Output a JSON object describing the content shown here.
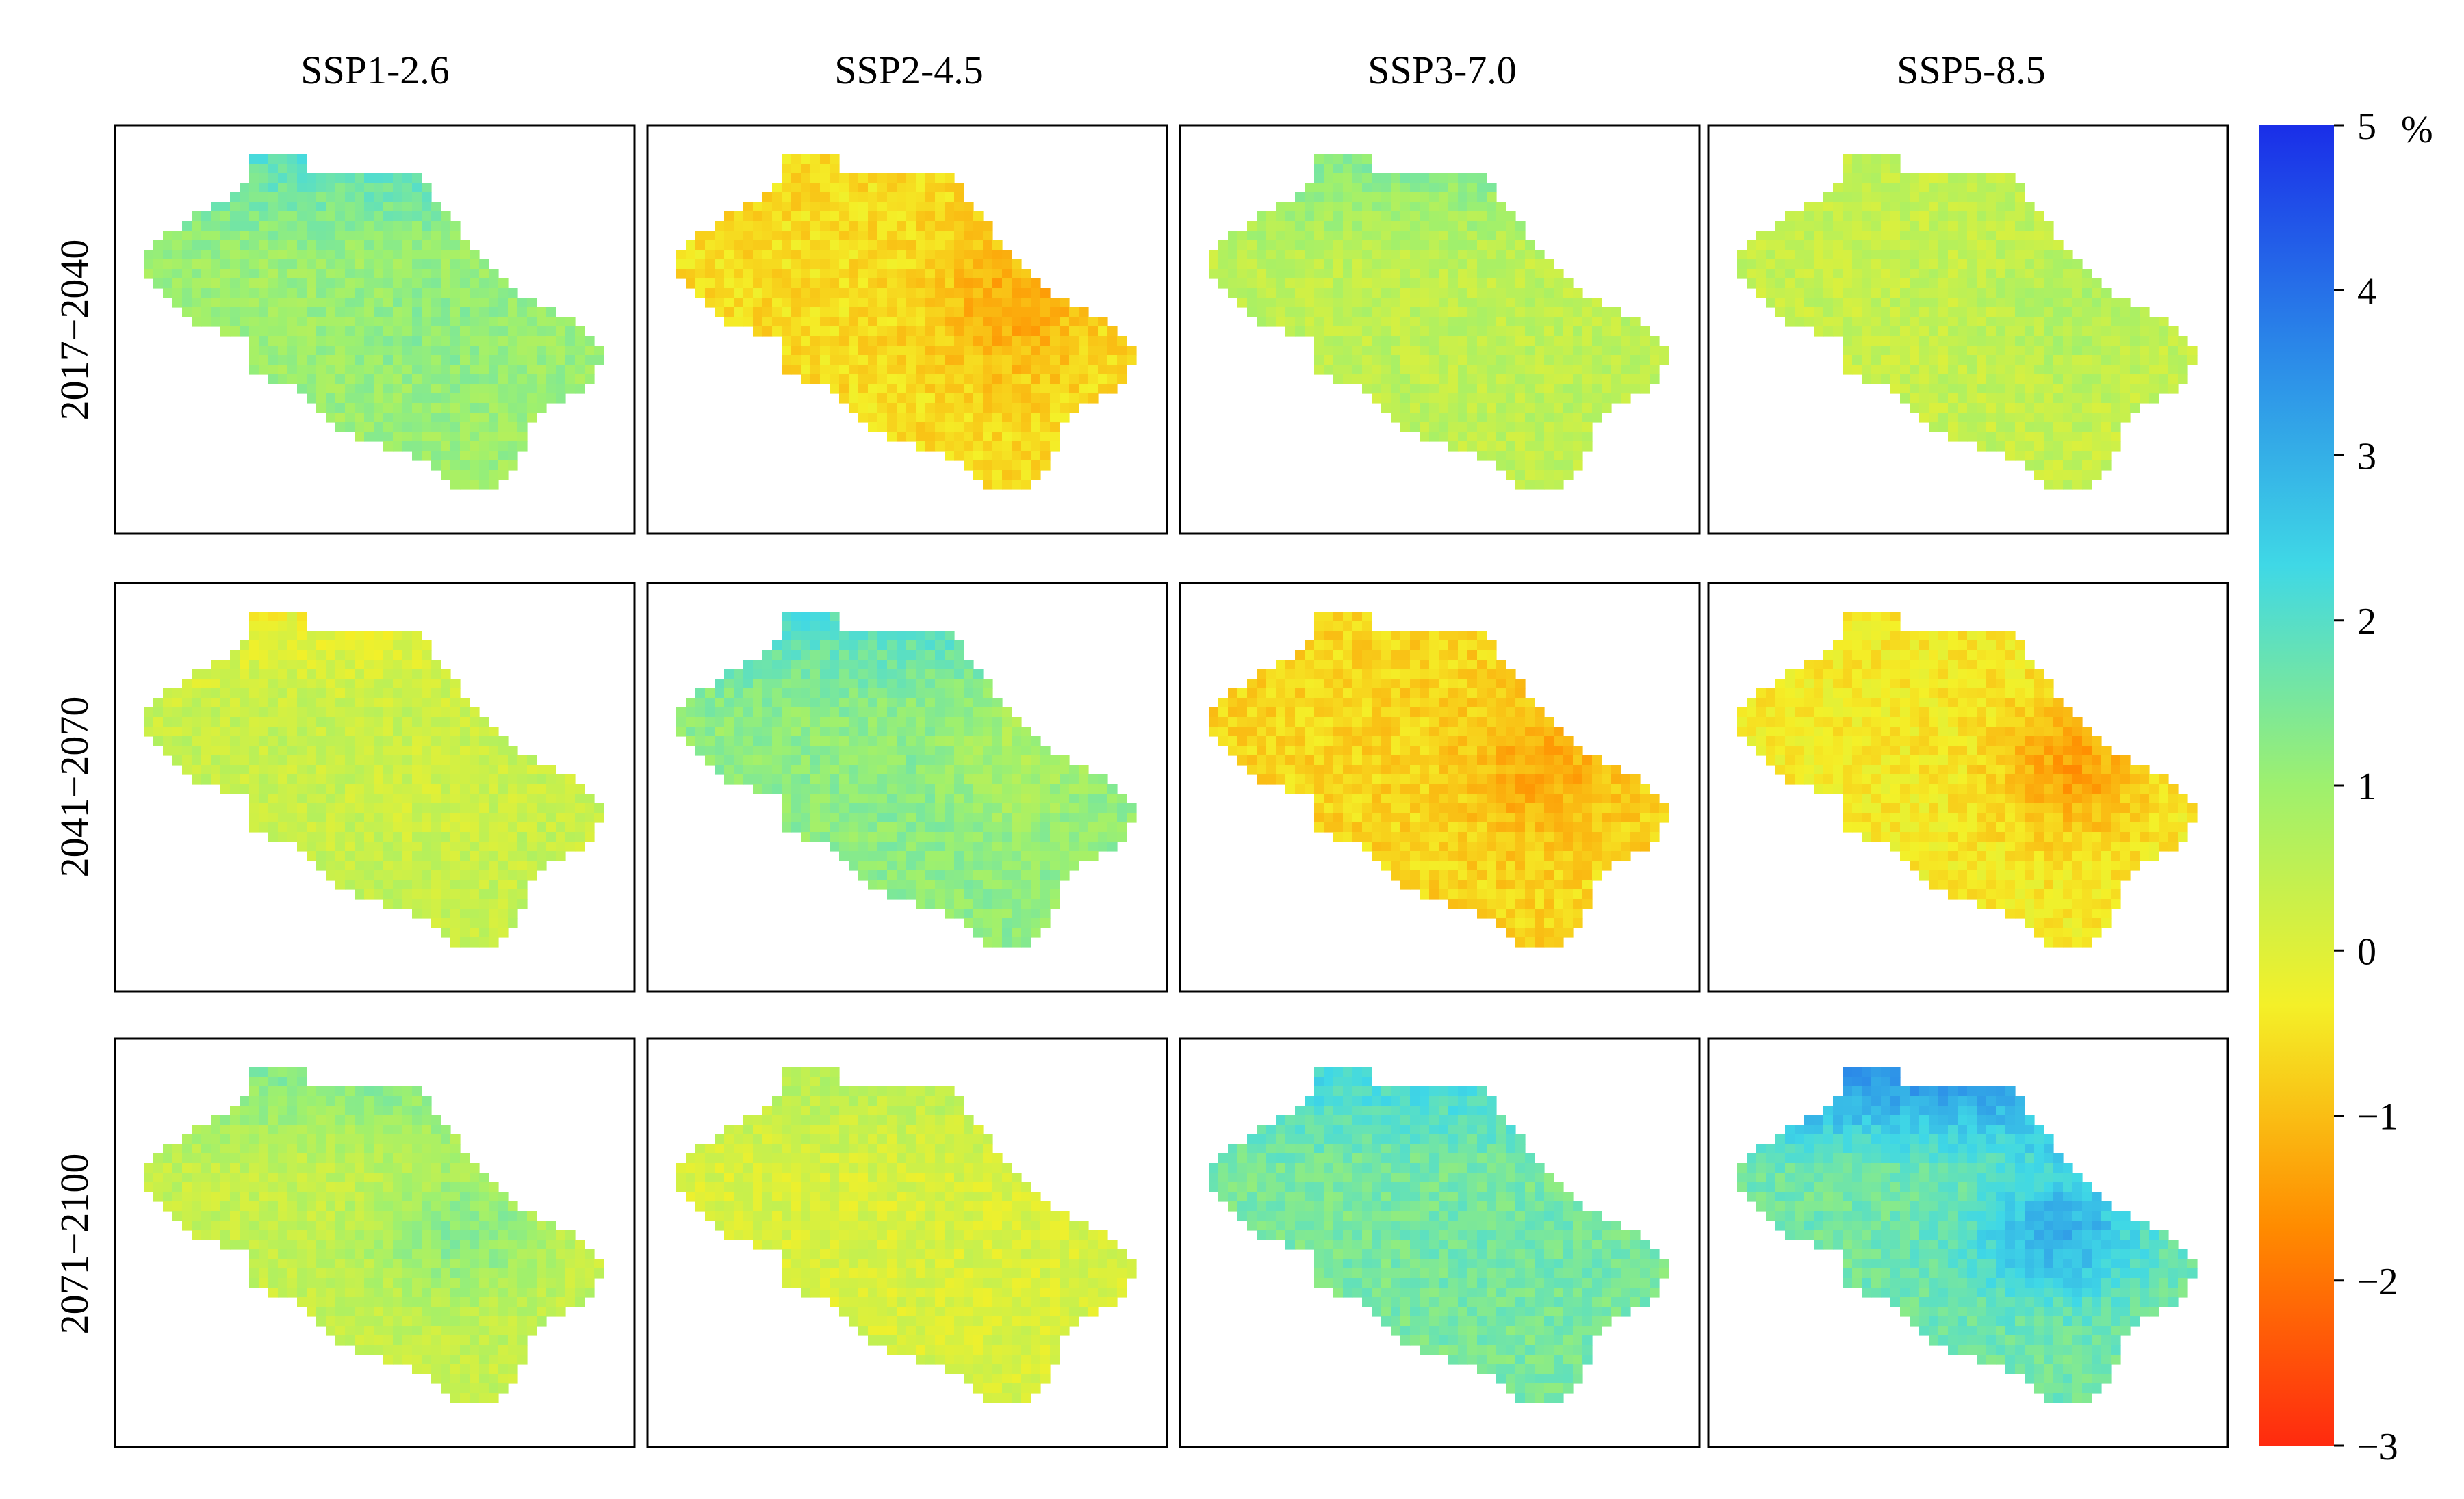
{
  "figure": {
    "columns": [
      "SSP1-2.6",
      "SSP2-4.5",
      "SSP3-7.0",
      "SSP5-8.5"
    ],
    "rows": [
      "2017−2040",
      "2041−2070",
      "2071−2100"
    ]
  },
  "colorbar": {
    "unit": "%",
    "min": -3,
    "max": 5,
    "ticks": [
      {
        "value": 5,
        "label": "5"
      },
      {
        "value": 4,
        "label": "4"
      },
      {
        "value": 3,
        "label": "3"
      },
      {
        "value": 2,
        "label": "2"
      },
      {
        "value": 1,
        "label": "1"
      },
      {
        "value": 0,
        "label": "0"
      },
      {
        "value": -1,
        "label": "−1"
      },
      {
        "value": -2,
        "label": "−2"
      },
      {
        "value": -3,
        "label": "−3"
      }
    ],
    "colors": [
      "#ff2a0f",
      "#ff8c00",
      "#f4f028",
      "#9ef06e",
      "#3fd8e6",
      "#2a86e8",
      "#1a2ee8"
    ]
  },
  "panels": [
    [
      {
        "mean": 1.0,
        "n_amp": 0.9,
        "e_amp": 0.0,
        "ne_amp": 0.5
      },
      {
        "mean": -0.6,
        "n_amp": 0.0,
        "e_amp": -0.7,
        "ne_amp": 0.0
      },
      {
        "mean": 0.5,
        "n_amp": 0.9,
        "e_amp": 0.0,
        "ne_amp": 0.0
      },
      {
        "mean": 0.4,
        "n_amp": 0.0,
        "e_amp": 0.3,
        "ne_amp": 0.0
      }
    ],
    [
      {
        "mean": 0.4,
        "n_amp": -0.6,
        "e_amp": 0.0,
        "ne_amp": -0.3
      },
      {
        "mean": 1.2,
        "n_amp": 0.8,
        "e_amp": -0.6,
        "ne_amp": 0.5
      },
      {
        "mean": -0.7,
        "n_amp": 0.0,
        "e_amp": -0.6,
        "ne_amp": 0.0
      },
      {
        "mean": -0.4,
        "n_amp": 0.0,
        "e_amp": -1.0,
        "ne_amp": 0.0
      }
    ],
    [
      {
        "mean": 0.4,
        "n_amp": 1.0,
        "e_amp": 0.6,
        "ne_amp": 0.8
      },
      {
        "mean": 0.1,
        "n_amp": 0.5,
        "e_amp": 0.0,
        "ne_amp": 0.0
      },
      {
        "mean": 1.5,
        "n_amp": 0.8,
        "e_amp": 0.0,
        "ne_amp": 0.3
      },
      {
        "mean": 1.6,
        "n_amp": 2.0,
        "e_amp": 1.0,
        "ne_amp": 1.0
      }
    ]
  ]
}
